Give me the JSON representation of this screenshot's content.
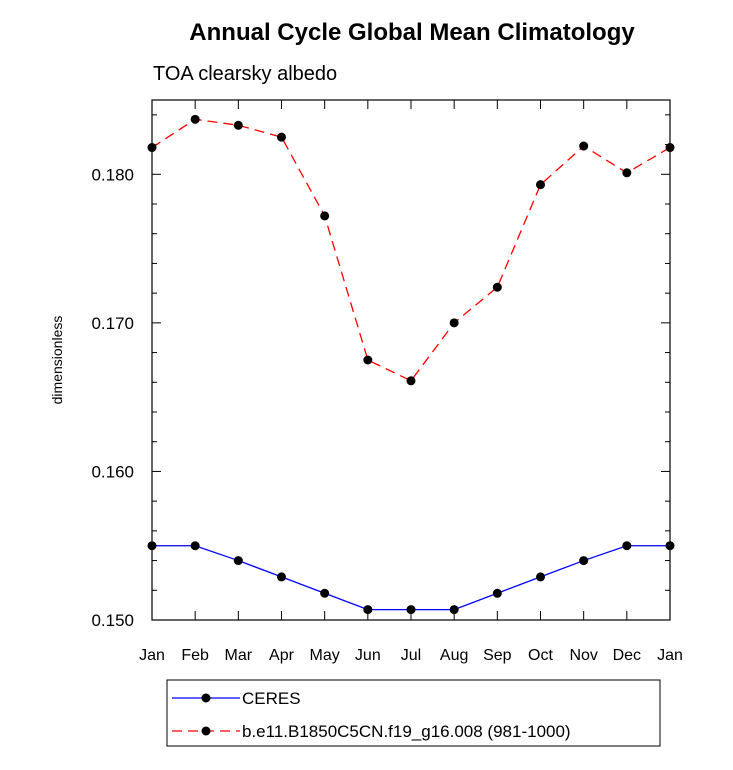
{
  "chart_data": {
    "type": "line",
    "title": "Annual Cycle Global Mean Climatology",
    "subtitle": "TOA clearsky albedo",
    "xlabel": "",
    "ylabel": "dimensionless",
    "categories": [
      "Jan",
      "Feb",
      "Mar",
      "Apr",
      "May",
      "Jun",
      "Jul",
      "Aug",
      "Sep",
      "Oct",
      "Nov",
      "Dec",
      "Jan"
    ],
    "ylim": [
      0.15,
      0.185
    ],
    "yticks": [
      "0.150",
      "0.160",
      "0.170",
      "0.180"
    ],
    "ytick_values": [
      0.15,
      0.16,
      0.17,
      0.18
    ],
    "grid": false,
    "legend_position": "bottom",
    "series": [
      {
        "name": "CERES",
        "color": "#0000ff",
        "dash": "solid",
        "values": [
          0.155,
          0.155,
          0.154,
          0.1529,
          0.1518,
          0.1507,
          0.1507,
          0.1507,
          0.1518,
          0.1529,
          0.154,
          0.155,
          0.155
        ]
      },
      {
        "name": "b.e11.B1850C5CN.f19_g16.008 (981-1000)",
        "color": "#ff0000",
        "dash": "dashed",
        "values": [
          0.1818,
          0.1837,
          0.1833,
          0.1825,
          0.1772,
          0.1675,
          0.1661,
          0.17,
          0.1724,
          0.1793,
          0.1819,
          0.1801,
          0.1818
        ]
      }
    ]
  }
}
